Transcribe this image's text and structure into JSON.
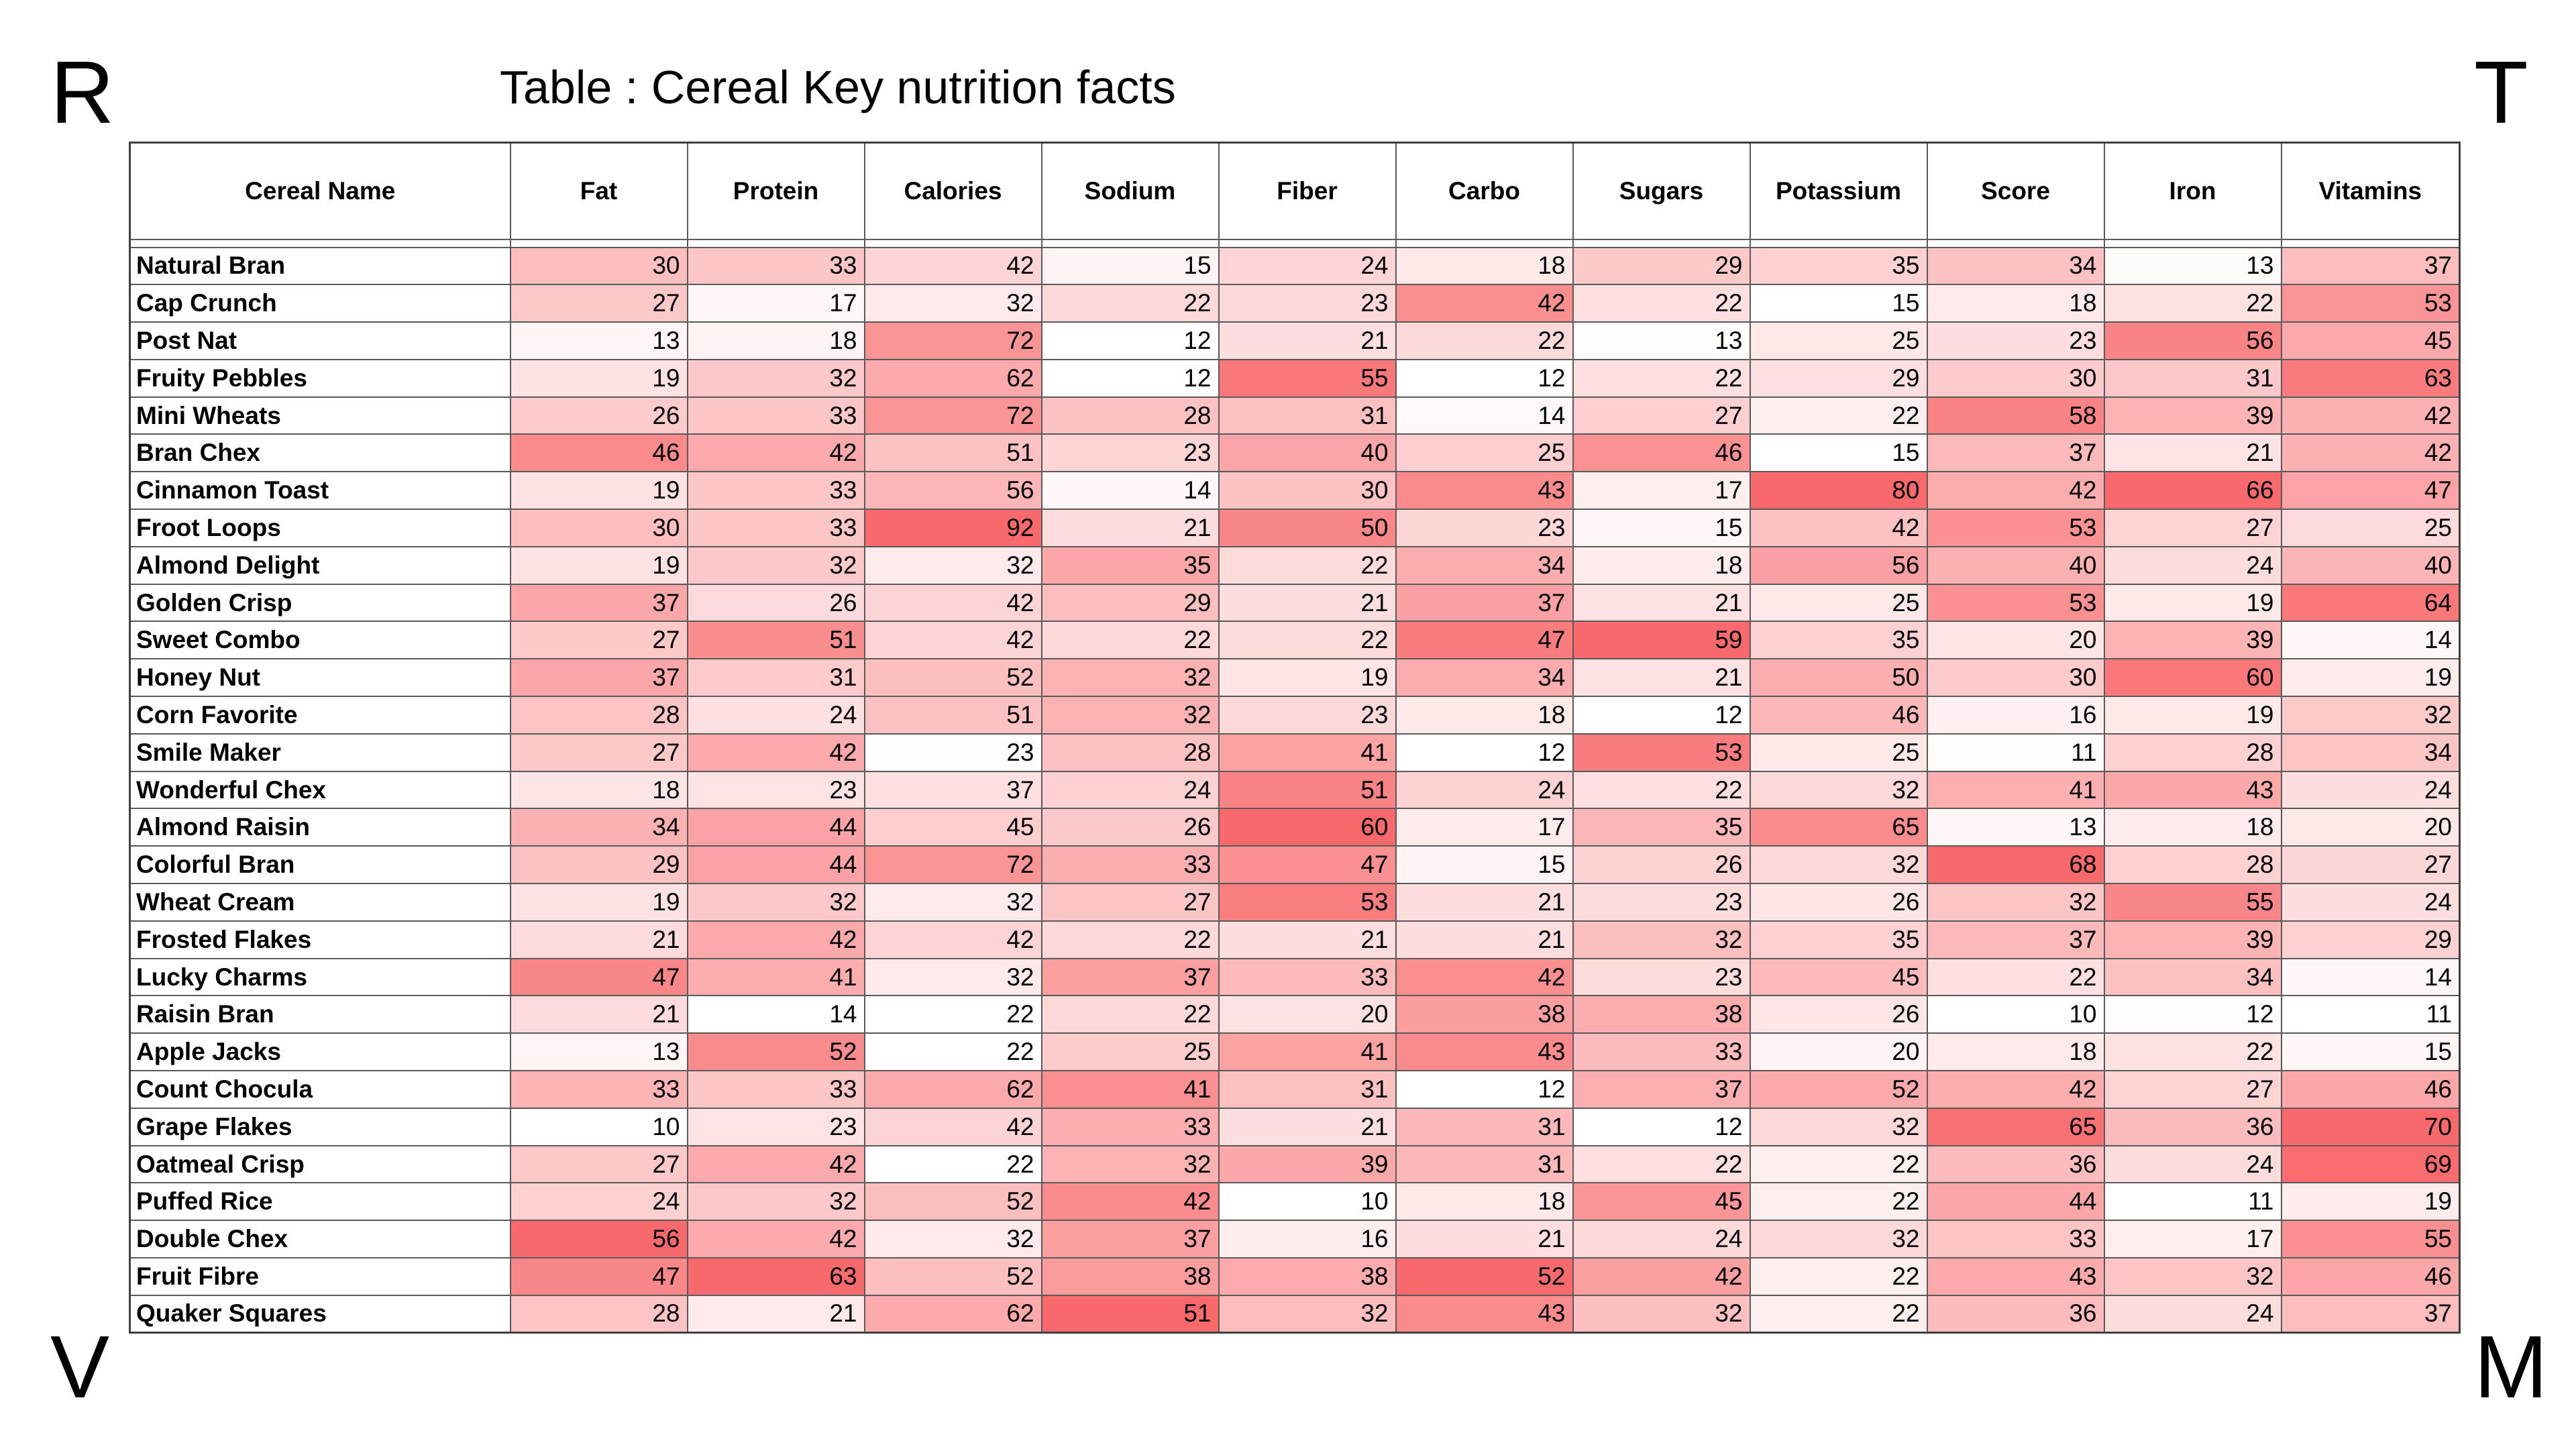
{
  "corners": {
    "top_left": "R",
    "top_right": "T",
    "bottom_left": "V",
    "bottom_right": "M"
  },
  "chart_data": {
    "type": "heatmap",
    "title": "Table : Cereal Key nutrition facts",
    "row_header": "Cereal Name",
    "columns": [
      "Fat",
      "Protein",
      "Calories",
      "Sodium",
      "Fiber",
      "Carbo",
      "Sugars",
      "Potassium",
      "Score",
      "Iron",
      "Vitamins"
    ],
    "rows": [
      {
        "name": "Natural Bran",
        "values": [
          30,
          33,
          42,
          15,
          24,
          18,
          29,
          35,
          34,
          13,
          37
        ]
      },
      {
        "name": "Cap Crunch",
        "values": [
          27,
          17,
          32,
          22,
          23,
          42,
          22,
          15,
          18,
          22,
          53
        ]
      },
      {
        "name": "Post Nat",
        "values": [
          13,
          18,
          72,
          12,
          21,
          22,
          13,
          25,
          23,
          56,
          45
        ]
      },
      {
        "name": "Fruity Pebbles",
        "values": [
          19,
          32,
          62,
          12,
          55,
          12,
          22,
          29,
          30,
          31,
          63
        ]
      },
      {
        "name": "Mini Wheats",
        "values": [
          26,
          33,
          72,
          28,
          31,
          14,
          27,
          22,
          58,
          39,
          42
        ]
      },
      {
        "name": "Bran Chex",
        "values": [
          46,
          42,
          51,
          23,
          40,
          25,
          46,
          15,
          37,
          21,
          42
        ]
      },
      {
        "name": "Cinnamon Toast",
        "values": [
          19,
          33,
          56,
          14,
          30,
          43,
          17,
          80,
          42,
          66,
          47
        ]
      },
      {
        "name": "Froot Loops",
        "values": [
          30,
          33,
          92,
          21,
          50,
          23,
          15,
          42,
          53,
          27,
          25
        ]
      },
      {
        "name": "Almond Delight",
        "values": [
          19,
          32,
          32,
          35,
          22,
          34,
          18,
          56,
          40,
          24,
          40
        ]
      },
      {
        "name": "Golden Crisp",
        "values": [
          37,
          26,
          42,
          29,
          21,
          37,
          21,
          25,
          53,
          19,
          64
        ]
      },
      {
        "name": "Sweet Combo",
        "values": [
          27,
          51,
          42,
          22,
          22,
          47,
          59,
          35,
          20,
          39,
          14
        ]
      },
      {
        "name": "Honey Nut",
        "values": [
          37,
          31,
          52,
          32,
          19,
          34,
          21,
          50,
          30,
          60,
          19
        ]
      },
      {
        "name": "Corn Favorite",
        "values": [
          28,
          24,
          51,
          32,
          23,
          18,
          12,
          46,
          16,
          19,
          32
        ]
      },
      {
        "name": "Smile Maker",
        "values": [
          27,
          42,
          23,
          28,
          41,
          12,
          53,
          25,
          11,
          28,
          34
        ]
      },
      {
        "name": "Wonderful Chex",
        "values": [
          18,
          23,
          37,
          24,
          51,
          24,
          22,
          32,
          41,
          43,
          24
        ]
      },
      {
        "name": "Almond Raisin",
        "values": [
          34,
          44,
          45,
          26,
          60,
          17,
          35,
          65,
          13,
          18,
          20
        ]
      },
      {
        "name": "Colorful Bran",
        "values": [
          29,
          44,
          72,
          33,
          47,
          15,
          26,
          32,
          68,
          28,
          27
        ]
      },
      {
        "name": "Wheat Cream",
        "values": [
          19,
          32,
          32,
          27,
          53,
          21,
          23,
          26,
          32,
          55,
          24
        ]
      },
      {
        "name": "Frosted Flakes",
        "values": [
          21,
          42,
          42,
          22,
          21,
          21,
          32,
          35,
          37,
          39,
          29
        ]
      },
      {
        "name": "Lucky Charms",
        "values": [
          47,
          41,
          32,
          37,
          33,
          42,
          23,
          45,
          22,
          34,
          14
        ]
      },
      {
        "name": "Raisin Bran",
        "values": [
          21,
          14,
          22,
          22,
          20,
          38,
          38,
          26,
          10,
          12,
          11
        ]
      },
      {
        "name": "Apple Jacks",
        "values": [
          13,
          52,
          22,
          25,
          41,
          43,
          33,
          20,
          18,
          22,
          15
        ]
      },
      {
        "name": "Count Chocula",
        "values": [
          33,
          33,
          62,
          41,
          31,
          12,
          37,
          52,
          42,
          27,
          46
        ]
      },
      {
        "name": "Grape Flakes",
        "values": [
          10,
          23,
          42,
          33,
          21,
          31,
          12,
          32,
          65,
          36,
          70
        ]
      },
      {
        "name": "Oatmeal Crisp",
        "values": [
          27,
          42,
          22,
          32,
          39,
          31,
          22,
          22,
          36,
          24,
          69
        ]
      },
      {
        "name": "Puffed Rice",
        "values": [
          24,
          32,
          52,
          42,
          10,
          18,
          45,
          22,
          44,
          11,
          19
        ]
      },
      {
        "name": "Double Chex",
        "values": [
          56,
          42,
          32,
          37,
          16,
          21,
          24,
          32,
          33,
          17,
          55
        ]
      },
      {
        "name": "Fruit Fibre",
        "values": [
          47,
          63,
          52,
          38,
          38,
          52,
          42,
          22,
          43,
          32,
          46
        ]
      },
      {
        "name": "Quaker Squares",
        "values": [
          28,
          21,
          62,
          51,
          32,
          43,
          32,
          22,
          36,
          24,
          37
        ]
      }
    ],
    "color_scale": {
      "low": "#ffffff",
      "high": "#f8696b",
      "scope": "per-column"
    },
    "grid": true
  }
}
